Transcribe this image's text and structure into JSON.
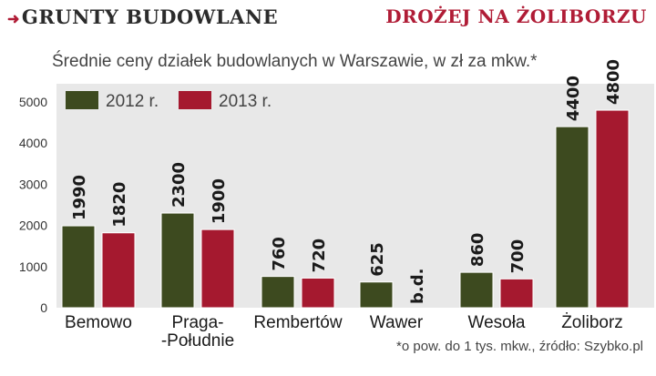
{
  "header": {
    "kicker_arrow": "➜",
    "kicker": "GRUNTY BUDOWLANE",
    "headline": "DROŻEJ NA ŻOLIBORZU"
  },
  "chart_data": {
    "type": "bar",
    "title": "Średnie ceny działek budowlanych w Warszawie, w zł za mkw.*",
    "footnote": "*o pow. do 1 tys. mkw., źródło: Szybko.pl",
    "categories": [
      [
        "Bemowo"
      ],
      [
        "Praga-",
        "-Południe"
      ],
      [
        "Rembertów"
      ],
      [
        "Wawer"
      ],
      [
        "Wesoła"
      ],
      [
        "Żoliborz"
      ]
    ],
    "series": [
      {
        "name": "2012 r.",
        "color": "#3d4a1f",
        "values": [
          1990,
          2300,
          760,
          625,
          860,
          4400
        ],
        "labels": [
          "1990",
          "2300",
          "760",
          "625",
          "860",
          "4400"
        ]
      },
      {
        "name": "2013 r.",
        "color": "#a5192f",
        "values": [
          1820,
          1900,
          720,
          null,
          700,
          4800
        ],
        "labels": [
          "1820",
          "1900",
          "720",
          "b.d.",
          "700",
          "4800"
        ]
      }
    ],
    "y_ticks": [
      "0",
      "1000",
      "2000",
      "3000",
      "4000",
      "5000"
    ],
    "ylim": [
      0,
      5000
    ],
    "legend_position": "top-left",
    "background": "#e8e8e8",
    "grid": false
  }
}
